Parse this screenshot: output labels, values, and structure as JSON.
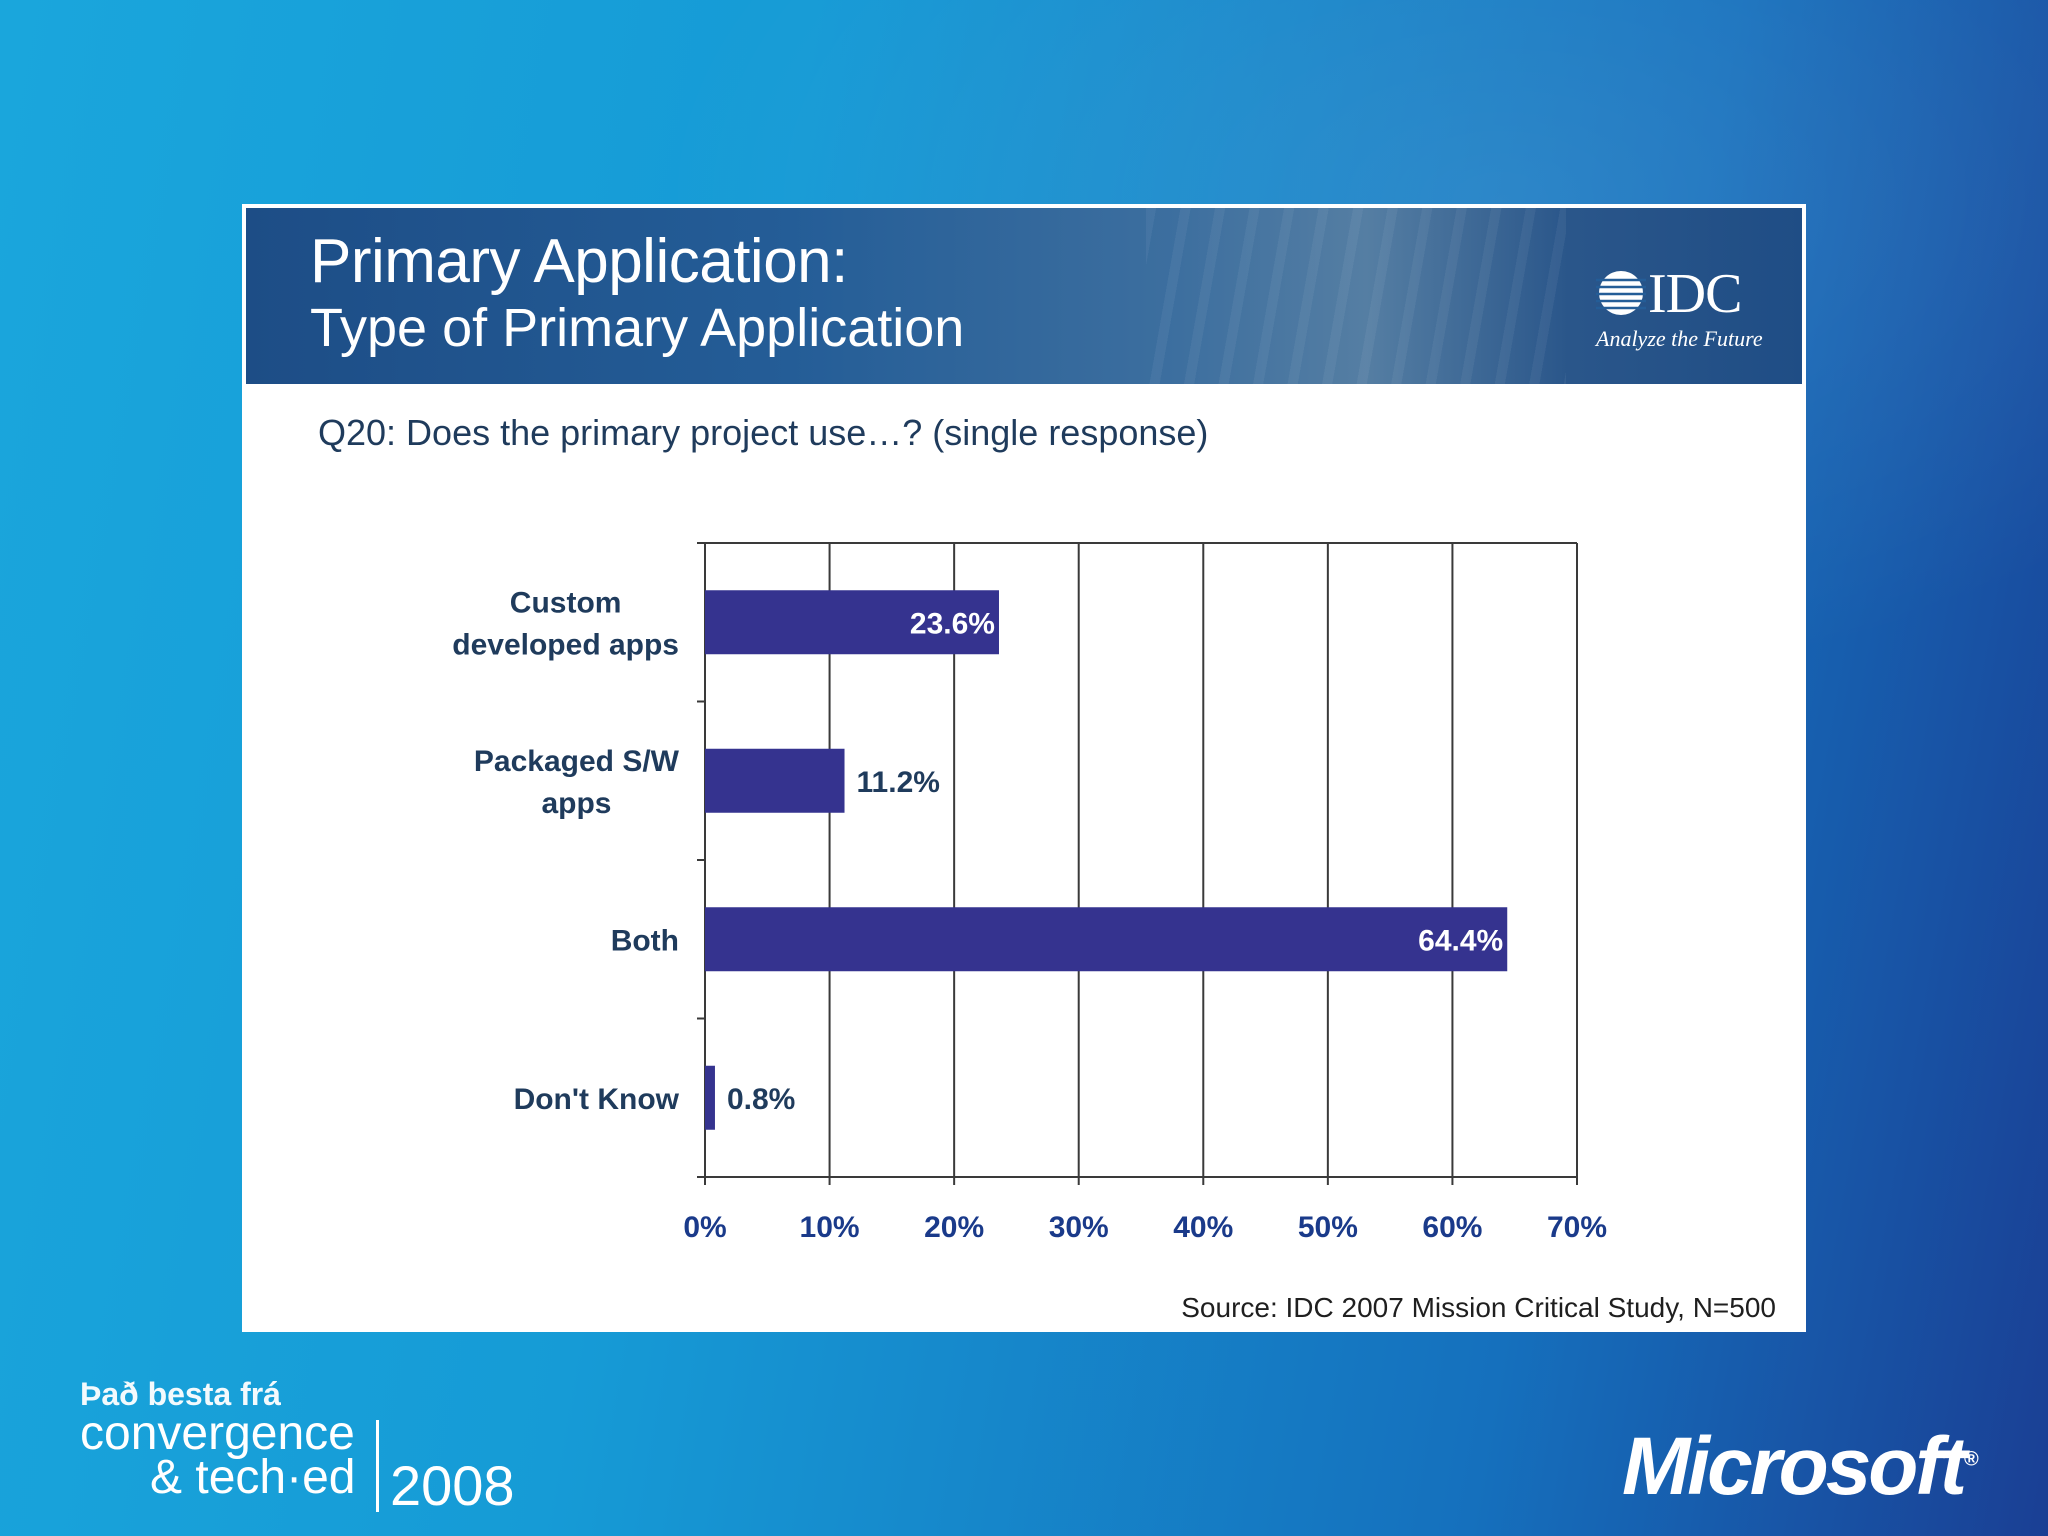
{
  "slide": {
    "title_line1": "Primary Application:",
    "title_line2": "Type of Primary Application",
    "question": "Q20: Does the primary project use…? (single response)",
    "source": "Source: IDC 2007 Mission Critical Study, N=500"
  },
  "idc_logo": {
    "text": "IDC",
    "tagline": "Analyze the Future"
  },
  "branding": {
    "event_line1": "Það besta frá",
    "event_line2": "convergence",
    "event_line3": "& tech·ed",
    "event_year": "2008",
    "company": "Microsoft"
  },
  "colors": {
    "bar": "#35338f",
    "axis": "#3a3a3a",
    "label": "#1f3b5c",
    "banner": "#1d4d86"
  },
  "chart_data": {
    "type": "bar",
    "orientation": "horizontal",
    "categories": [
      [
        "Custom",
        "developed apps"
      ],
      [
        "Packaged S/W",
        "apps"
      ],
      [
        "Both"
      ],
      [
        "Don't Know"
      ]
    ],
    "values": [
      23.6,
      11.2,
      64.4,
      0.8
    ],
    "value_labels": [
      "23.6%",
      "11.2%",
      "64.4%",
      "0.8%"
    ],
    "xlim": [
      0,
      70
    ],
    "xticks": [
      0,
      10,
      20,
      30,
      40,
      50,
      60,
      70
    ],
    "xtick_labels": [
      "0%",
      "10%",
      "20%",
      "30%",
      "40%",
      "50%",
      "60%",
      "70%"
    ],
    "grid": true,
    "title": "",
    "xlabel": "",
    "ylabel": ""
  }
}
